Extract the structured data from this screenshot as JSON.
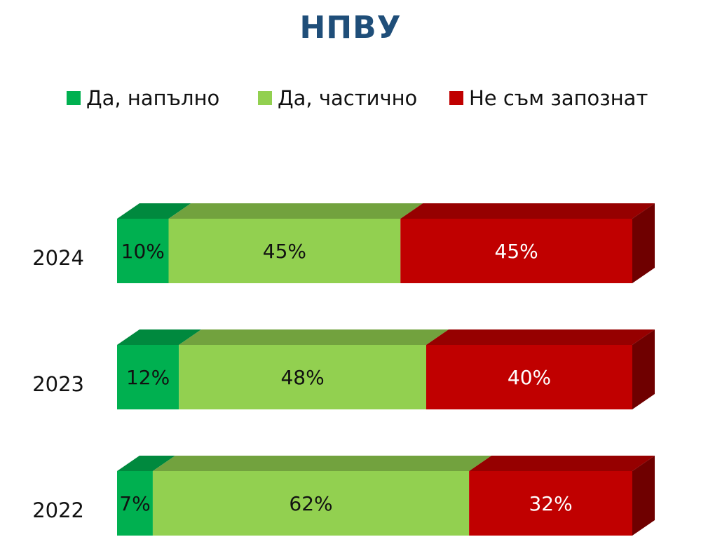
{
  "chart_data": {
    "type": "bar",
    "orientation": "horizontal",
    "stacked": "100%",
    "style": "3d",
    "title": "НПВУ",
    "categories": [
      "2024",
      "2023",
      "2022"
    ],
    "series": [
      {
        "name": "Да, напълно",
        "values": [
          10,
          12,
          7
        ],
        "labels": [
          "10%",
          "12%",
          "7%"
        ],
        "color": "#00b050",
        "label_color": "#111111"
      },
      {
        "name": "Да, частично",
        "values": [
          45,
          48,
          62
        ],
        "labels": [
          "45%",
          "48%",
          "62%"
        ],
        "color": "#92d050",
        "label_color": "#111111"
      },
      {
        "name": "Не съм запознат",
        "values": [
          45,
          40,
          32
        ],
        "labels": [
          "45%",
          "40%",
          "32%"
        ],
        "color": "#c00000",
        "label_color": "#ffffff"
      }
    ],
    "xlim": [
      0,
      100
    ],
    "legend_position": "top",
    "grid": false
  }
}
